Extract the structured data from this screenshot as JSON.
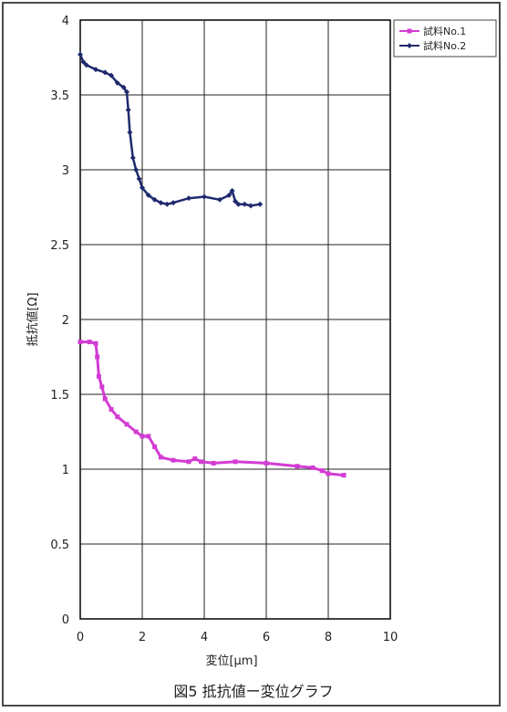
{
  "caption": "図5 抵抗値ー変位グラフ",
  "chart_data": {
    "type": "line",
    "xlabel": "変位[μm]",
    "ylabel": "抵抗値[Ω]",
    "xlim": [
      0,
      10
    ],
    "ylim": [
      0,
      4
    ],
    "x_ticks": [
      "0",
      "2",
      "4",
      "6",
      "8",
      "10"
    ],
    "y_ticks": [
      "0",
      "0.5",
      "1",
      "1.5",
      "2",
      "2.5",
      "3",
      "3.5",
      "4"
    ],
    "grid": true,
    "legend_position": "top-right",
    "series": [
      {
        "name": "試料No.1",
        "color": "#d33cd3",
        "marker": "square",
        "x": [
          0,
          0.3,
          0.5,
          0.55,
          0.6,
          0.7,
          0.8,
          1.0,
          1.2,
          1.5,
          1.8,
          2.0,
          2.2,
          2.4,
          2.6,
          3.0,
          3.5,
          3.7,
          3.9,
          4.3,
          5.0,
          6.0,
          7.0,
          7.5,
          7.8,
          8.0,
          8.5
        ],
        "y": [
          1.85,
          1.85,
          1.84,
          1.75,
          1.62,
          1.55,
          1.47,
          1.4,
          1.35,
          1.3,
          1.25,
          1.22,
          1.22,
          1.15,
          1.08,
          1.06,
          1.05,
          1.07,
          1.05,
          1.04,
          1.05,
          1.04,
          1.02,
          1.01,
          0.99,
          0.97,
          0.96
        ]
      },
      {
        "name": "試料No.2",
        "color": "#1f2a6e",
        "marker": "diamond",
        "x": [
          0,
          0.1,
          0.2,
          0.5,
          0.8,
          1.0,
          1.2,
          1.4,
          1.5,
          1.55,
          1.6,
          1.7,
          1.8,
          1.9,
          2.0,
          2.2,
          2.4,
          2.6,
          2.8,
          3.0,
          3.5,
          4.0,
          4.5,
          4.8,
          4.9,
          5.0,
          5.1,
          5.3,
          5.5,
          5.8
        ],
        "y": [
          3.77,
          3.72,
          3.7,
          3.67,
          3.65,
          3.63,
          3.58,
          3.55,
          3.52,
          3.4,
          3.25,
          3.08,
          3.0,
          2.94,
          2.88,
          2.83,
          2.8,
          2.78,
          2.77,
          2.78,
          2.81,
          2.82,
          2.8,
          2.83,
          2.86,
          2.79,
          2.77,
          2.77,
          2.76,
          2.77
        ]
      }
    ]
  }
}
